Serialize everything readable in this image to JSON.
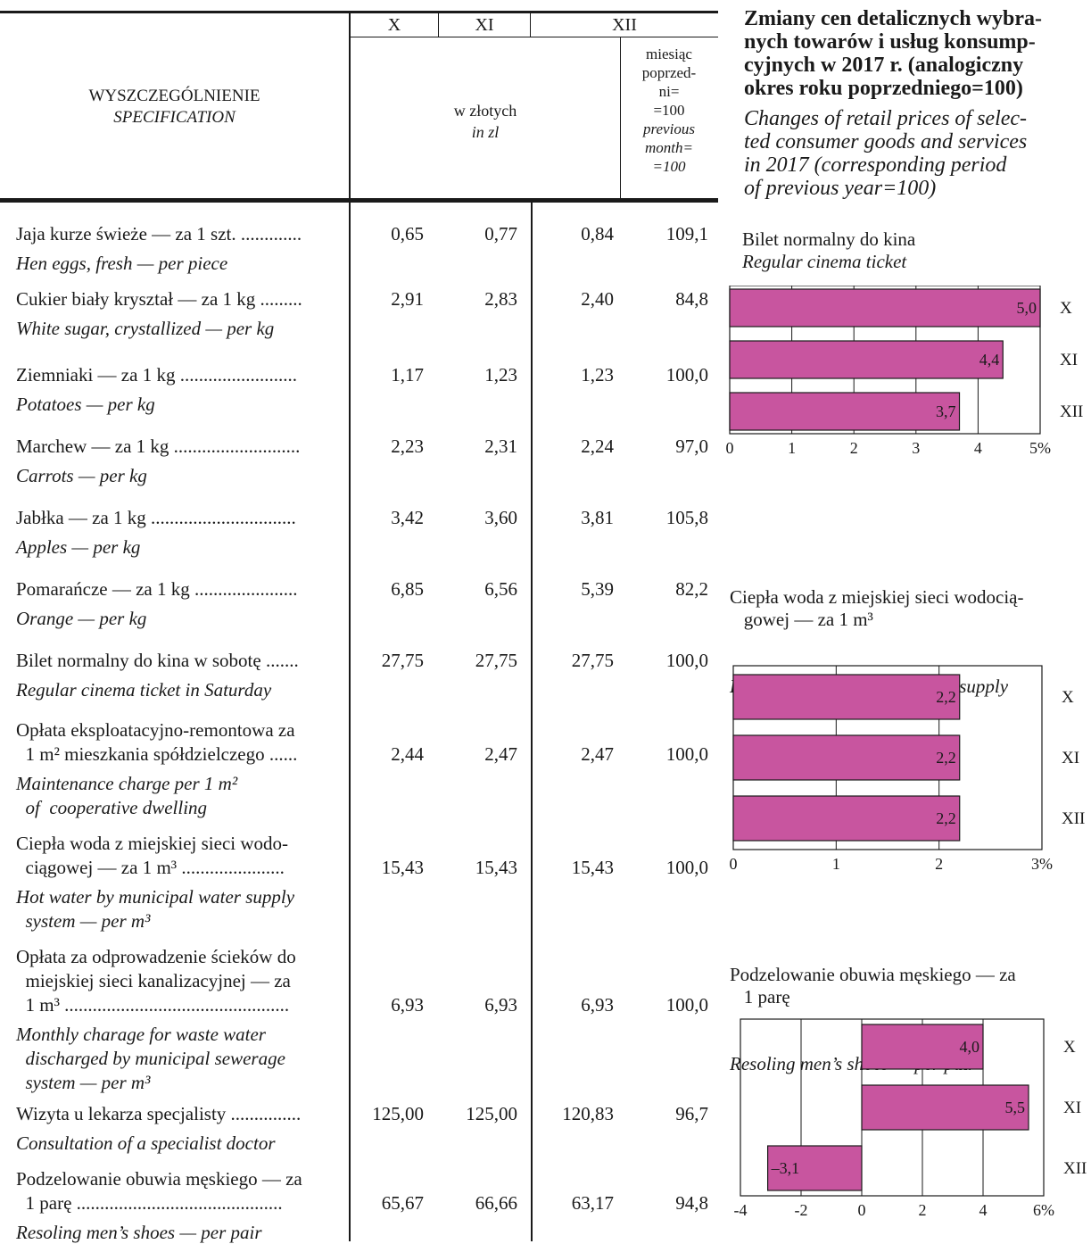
{
  "header": {
    "spec_pl": "WYSZCZEGÓLNIENIE",
    "spec_en": "SPECIFICATION",
    "months": [
      "X",
      "XI",
      "XII"
    ],
    "unit_pl": "w złotych",
    "unit_en": "in zl",
    "index_pl_lines": [
      "miesiąc",
      "poprzed-",
      "ni=",
      "=100"
    ],
    "index_en_lines": [
      "previous",
      "month=",
      "=100"
    ]
  },
  "rows": [
    {
      "pl": [
        "Jaja kurze świeże — za 1 szt. ............."
      ],
      "en": [
        "Hen eggs, fresh — per piece"
      ],
      "values": [
        "0,65",
        "0,77",
        "0,84",
        "109,1"
      ]
    },
    {
      "pl": [
        "Cukier biały kryształ — za 1 kg ........."
      ],
      "en": [
        "White sugar, crystallized — per kg"
      ],
      "values": [
        "2,91",
        "2,83",
        "2,40",
        "84,8"
      ]
    },
    {
      "pl": [
        "Ziemniaki — za 1 kg ........................."
      ],
      "en": [
        "Potatoes — per kg"
      ],
      "values": [
        "1,17",
        "1,23",
        "1,23",
        "100,0"
      ]
    },
    {
      "pl": [
        "Marchew — za 1 kg ..........................."
      ],
      "en": [
        "Carrots — per kg"
      ],
      "values": [
        "2,23",
        "2,31",
        "2,24",
        "97,0"
      ]
    },
    {
      "pl": [
        "Jabłka — za 1 kg ..............................."
      ],
      "en": [
        "Apples — per kg"
      ],
      "values": [
        "3,42",
        "3,60",
        "3,81",
        "105,8"
      ]
    },
    {
      "pl": [
        "Pomarańcze — za 1 kg ......................"
      ],
      "en": [
        "Orange — per kg"
      ],
      "values": [
        "6,85",
        "6,56",
        "5,39",
        "82,2"
      ]
    },
    {
      "pl": [
        "Bilet normalny do kina w sobotę ......."
      ],
      "en": [
        "Regular cinema ticket in Saturday"
      ],
      "values": [
        "27,75",
        "27,75",
        "27,75",
        "100,0"
      ]
    },
    {
      "pl": [
        "Opłata eksploatacyjno-remontowa za",
        "  1 m² mieszkania spółdzielczego ......"
      ],
      "en": [
        "Maintenance charge per 1 m²",
        "  of  cooperative dwelling"
      ],
      "values": [
        "2,44",
        "2,47",
        "2,47",
        "100,0"
      ]
    },
    {
      "pl": [
        "Ciepła woda z miejskiej sieci wodo-",
        "  ciągowej — za 1 m³ ......................"
      ],
      "en": [
        "Hot water by municipal water supply",
        "  system — per m³"
      ],
      "values": [
        "15,43",
        "15,43",
        "15,43",
        "100,0"
      ]
    },
    {
      "pl": [
        "Opłata za odprowadzenie ścieków do",
        "  miejskiej sieci kanalizacyjnej — za",
        "  1 m³ ................................................"
      ],
      "en": [
        "Monthly charage for waste water",
        "  discharged by municipal sewerage",
        "  system — per m³"
      ],
      "values": [
        "6,93",
        "6,93",
        "6,93",
        "100,0"
      ]
    },
    {
      "pl": [
        "Wizyta u lekarza specjalisty ..............."
      ],
      "en": [
        "Consultation of a specialist doctor"
      ],
      "values": [
        "125,00",
        "125,00",
        "120,83",
        "96,7"
      ]
    },
    {
      "pl": [
        "Podzelowanie obuwia męskiego — za",
        "  1 parę ............................................"
      ],
      "en": [
        "Resoling men’s shoes — per pair"
      ],
      "values": [
        "65,67",
        "66,66",
        "63,17",
        "94,8"
      ]
    }
  ],
  "side_title_pl": "Zmiany cen detalicznych wybra-\nnych towarów i usług konsump-\ncyjnych w 2017 r. (analogiczny\nokres roku poprzedniego=100)",
  "side_title_en": "Changes of retail prices of selec-\nted consumer goods and services\nin 2017 (corresponding period\nof previous year=100)",
  "colors": {
    "bar": "#c8559f",
    "line": "#1a1a1a"
  },
  "chart_data": [
    {
      "type": "bar",
      "orientation": "horizontal",
      "title_pl": "Bilet normalny do kina",
      "title_en": "Regular cinema ticket",
      "categories": [
        "X",
        "XI",
        "XII"
      ],
      "values": [
        5.0,
        4.4,
        3.7
      ],
      "value_labels": [
        "5,0",
        "4,4",
        "3,7"
      ],
      "xlim": [
        0,
        5
      ],
      "ticks": [
        "0",
        "1",
        "2",
        "3",
        "4",
        "5%"
      ],
      "grid": true
    },
    {
      "type": "bar",
      "orientation": "horizontal",
      "title_pl": "Ciepła woda z miejskiej sieci wodocią-\n   gowej — za 1 m³",
      "title_en": "Hot water by municipal water supply\n   system — per m³",
      "categories": [
        "X",
        "XI",
        "XII"
      ],
      "values": [
        2.2,
        2.2,
        2.2
      ],
      "value_labels": [
        "2,2",
        "2,2",
        "2,2"
      ],
      "xlim": [
        0,
        3
      ],
      "ticks": [
        "0",
        "1",
        "2",
        "3%"
      ],
      "grid": true
    },
    {
      "type": "bar",
      "orientation": "horizontal",
      "title_pl": "Podzelowanie obuwia męskiego — za\n   1 parę",
      "title_en": "Resoling men’s shoes — per pair",
      "categories": [
        "X",
        "XI",
        "XII"
      ],
      "values": [
        4.0,
        5.5,
        -3.1
      ],
      "value_labels": [
        "4,0",
        "5,5",
        "–3,1"
      ],
      "xlim": [
        -4,
        6
      ],
      "ticks": [
        "-4",
        "-2",
        "0",
        "2",
        "4",
        "6%"
      ],
      "grid": true
    }
  ]
}
